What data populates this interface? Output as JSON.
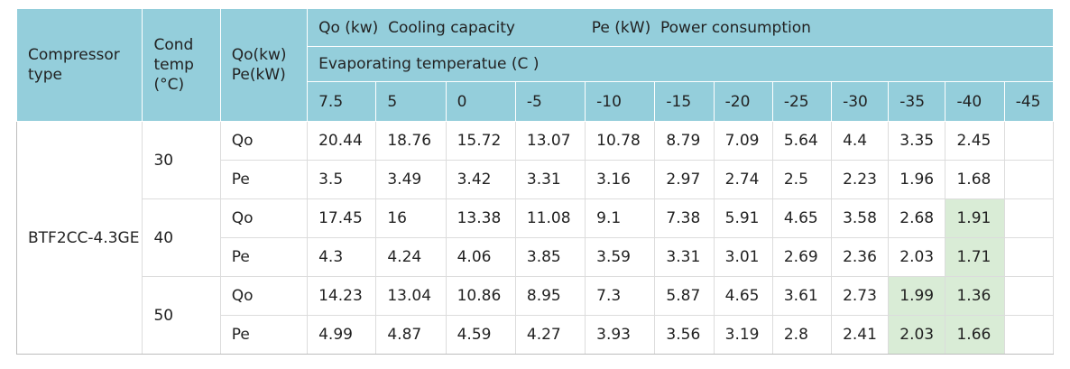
{
  "header": {
    "compressor_type": "Compressor type",
    "cond_temp": "Cond temp (°C)",
    "qo_pe": "Qo(kw) Pe(kW)",
    "legend_qo": "Qo (kw)  Cooling capacity",
    "legend_pe": "Pe (kW)  Power consumption",
    "evaporating": "Evaporating temperatue (C )",
    "temps": [
      "7.5",
      "5",
      "0",
      "-5",
      "-10",
      "-15",
      "-20",
      "-25",
      "-30",
      "-35",
      "-40",
      "-45"
    ]
  },
  "body": {
    "model": "BTF2CC-4.3GE",
    "groups": [
      {
        "cond": "30",
        "rows": [
          {
            "label": "Qo",
            "values": [
              "20.44",
              "18.76",
              "15.72",
              "13.07",
              "10.78",
              "8.79",
              "7.09",
              "5.64",
              "4.4",
              "3.35",
              "2.45",
              ""
            ]
          },
          {
            "label": "Pe",
            "values": [
              "3.5",
              "3.49",
              "3.42",
              "3.31",
              "3.16",
              "2.97",
              "2.74",
              "2.5",
              "2.23",
              "1.96",
              "1.68",
              ""
            ]
          }
        ]
      },
      {
        "cond": "40",
        "rows": [
          {
            "label": "Qo",
            "values": [
              "17.45",
              "16",
              "13.38",
              "11.08",
              "9.1",
              "7.38",
              "5.91",
              "4.65",
              "3.58",
              "2.68",
              "1.91",
              ""
            ]
          },
          {
            "label": "Pe",
            "values": [
              "4.3",
              "4.24",
              "4.06",
              "3.85",
              "3.59",
              "3.31",
              "3.01",
              "2.69",
              "2.36",
              "2.03",
              "1.71",
              ""
            ]
          }
        ]
      },
      {
        "cond": "50",
        "rows": [
          {
            "label": "Qo",
            "values": [
              "14.23",
              "13.04",
              "10.86",
              "8.95",
              "7.3",
              "5.87",
              "4.65",
              "3.61",
              "2.73",
              "1.99",
              "1.36",
              ""
            ]
          },
          {
            "label": "Pe",
            "values": [
              "4.99",
              "4.87",
              "4.59",
              "4.27",
              "3.93",
              "3.56",
              "3.19",
              "2.8",
              "2.41",
              "2.03",
              "1.66",
              ""
            ]
          }
        ]
      }
    ]
  },
  "colors": {
    "header_bg": "#94cedb",
    "highlight_bg": "#d9ecd6"
  }
}
